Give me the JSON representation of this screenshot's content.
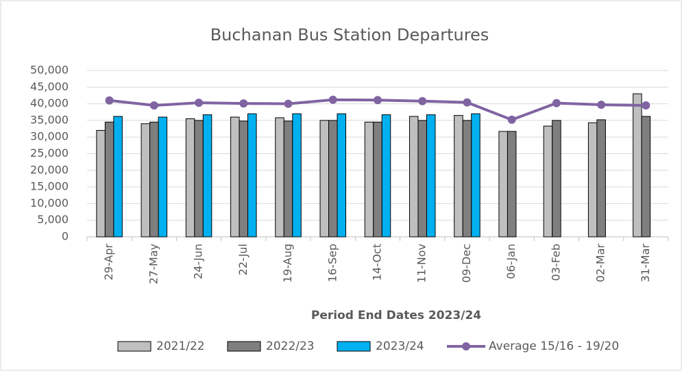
{
  "chart_data": {
    "type": "bar",
    "title": "Buchanan Bus Station Departures",
    "x_label": "Period End Dates 2023/24",
    "categories": [
      "29-Apr",
      "27-May",
      "24-Jun",
      "22-Jul",
      "19-Aug",
      "16-Sep",
      "14-Oct",
      "11-Nov",
      "09-Dec",
      "06-Jan",
      "03-Feb",
      "02-Mar",
      "31-Mar"
    ],
    "series": [
      {
        "name": "2021/22",
        "color": "#bfbfbf",
        "type": "bar",
        "values": [
          32000,
          34000,
          35500,
          36000,
          35800,
          35000,
          34500,
          36200,
          36500,
          31700,
          33300,
          34300,
          43000
        ]
      },
      {
        "name": "2022/23",
        "color": "#7f7f7f",
        "type": "bar",
        "values": [
          34500,
          34500,
          35000,
          34800,
          34800,
          35000,
          34500,
          35000,
          35000,
          31700,
          35000,
          35200,
          36200
        ]
      },
      {
        "name": "2023/24",
        "color": "#00b0f0",
        "type": "bar",
        "values": [
          36200,
          36000,
          36700,
          37000,
          37000,
          37000,
          36700,
          36700,
          37000,
          null,
          null,
          null,
          null
        ]
      },
      {
        "name": "Average 15/16 - 19/20",
        "color": "#8064a2",
        "type": "line",
        "values": [
          41000,
          39500,
          40300,
          40100,
          40000,
          41200,
          41100,
          40800,
          40400,
          35200,
          40200,
          39700,
          39500
        ]
      }
    ],
    "ylim": [
      0,
      50000
    ],
    "yticks": [
      0,
      {
        "value": 5000,
        "label": "5,000"
      },
      {
        "value": 10000,
        "label": "10,000"
      },
      {
        "value": 15000,
        "label": "15,000"
      },
      {
        "value": 20000,
        "label": "20,000"
      },
      {
        "value": 25000,
        "label": "25,000"
      },
      {
        "value": 30000,
        "label": "30,000"
      },
      {
        "value": 35000,
        "label": "35,000"
      },
      {
        "value": 40000,
        "label": "40,000"
      },
      {
        "value": 45000,
        "label": "45,000"
      },
      {
        "value": 50000,
        "label": "50,000"
      }
    ],
    "grid": true
  }
}
